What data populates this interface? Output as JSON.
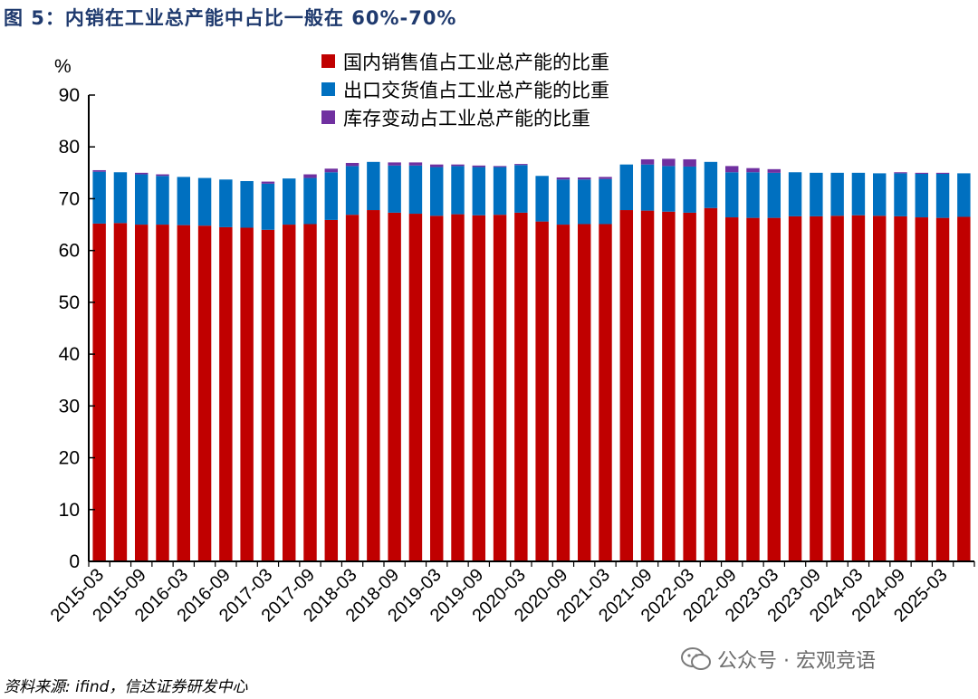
{
  "figure": {
    "title": "图 5：内销在工业总产能中占比一般在 60%-70%",
    "source": "资料来源: ifind，信达证券研发中心",
    "watermark": "公众号 · 宏观竞语"
  },
  "colors": {
    "domestic": "#C00000",
    "export": "#0070C0",
    "inventory": "#7030A0",
    "axis": "#000000",
    "title": "#1F3A6E"
  },
  "chart_data": {
    "type": "bar",
    "stacked": true,
    "ylabel": "%",
    "ylim": [
      0,
      90
    ],
    "yticks": [
      0,
      10,
      20,
      30,
      40,
      50,
      60,
      70,
      80,
      90
    ],
    "xtick_labels": [
      "2015-03",
      "2015-09",
      "2016-03",
      "2016-09",
      "2017-03",
      "2017-09",
      "2018-03",
      "2018-09",
      "2019-03",
      "2019-09",
      "2020-03",
      "2020-09",
      "2021-03",
      "2021-09",
      "2022-03",
      "2022-09",
      "2023-03",
      "2023-09",
      "2024-03",
      "2024-09",
      "2025-03"
    ],
    "legend": [
      "国内销售值占工业总产能的比重",
      "出口交货值占工业总产能的比重",
      "库存变动占工业总产能的比重"
    ],
    "series": [
      {
        "name": "国内销售值占工业总产能的比重",
        "color_key": "domestic",
        "values": [
          65.2,
          65.3,
          65.0,
          65.0,
          64.9,
          64.8,
          64.5,
          64.4,
          64.0,
          65.0,
          65.1,
          65.9,
          66.9,
          67.8,
          67.3,
          67.1,
          66.7,
          67.0,
          66.8,
          66.9,
          67.3,
          65.6,
          65.0,
          65.1,
          65.1,
          67.8,
          67.7,
          67.5,
          67.3,
          68.2,
          66.4,
          66.3,
          66.3,
          66.6,
          66.6,
          66.7,
          66.8,
          66.7,
          66.6,
          66.4,
          66.3,
          66.5
        ]
      },
      {
        "name": "出口交货值占工业总产能的比重",
        "color_key": "export",
        "values": [
          10.0,
          9.8,
          9.7,
          9.4,
          9.3,
          9.2,
          9.2,
          9.0,
          8.9,
          8.9,
          8.9,
          9.2,
          9.4,
          9.3,
          9.1,
          9.3,
          9.4,
          9.3,
          9.3,
          9.2,
          9.2,
          8.8,
          8.7,
          8.6,
          8.7,
          8.8,
          8.9,
          8.8,
          8.9,
          8.9,
          8.7,
          8.8,
          8.7,
          8.5,
          8.4,
          8.3,
          8.2,
          8.2,
          8.3,
          8.4,
          8.5,
          8.4
        ]
      },
      {
        "name": "库存变动占工业总产能的比重",
        "color_key": "inventory",
        "values": [
          0.3,
          0.0,
          0.3,
          0.3,
          0.0,
          0.0,
          0.0,
          0.0,
          0.4,
          0.0,
          0.7,
          0.7,
          0.6,
          0.0,
          0.6,
          0.6,
          0.5,
          0.3,
          0.3,
          0.2,
          0.2,
          0.0,
          0.4,
          0.4,
          0.4,
          0.0,
          1.0,
          1.4,
          1.4,
          0.0,
          1.2,
          0.8,
          0.7,
          0.0,
          0.0,
          0.0,
          0.0,
          0.0,
          0.2,
          0.2,
          0.2,
          0.0
        ]
      }
    ]
  }
}
